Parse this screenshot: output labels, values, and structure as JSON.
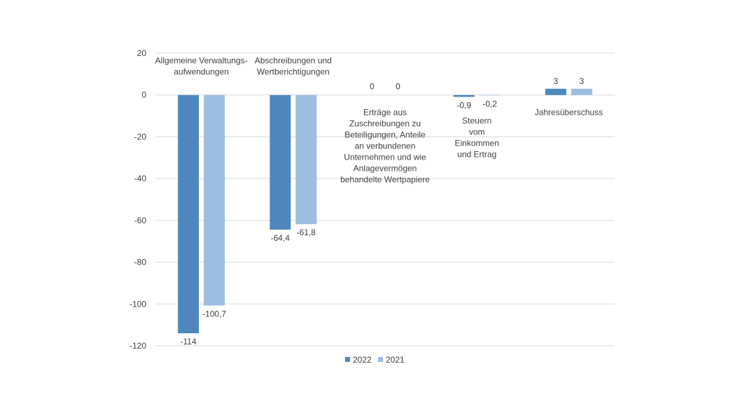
{
  "colors": {
    "series_2022": "#4f87bd",
    "series_2021": "#9dbde3",
    "gridline": "#d9d9d9",
    "text": "#404040"
  },
  "chart_data": {
    "type": "bar",
    "title": "",
    "xlabel": "",
    "ylabel": "",
    "ylim": [
      -120,
      20
    ],
    "yticks": [
      20,
      0,
      -20,
      -40,
      -60,
      -80,
      -100,
      -120
    ],
    "grid": true,
    "legend_position": "bottom",
    "categories": [
      [
        "Allgemeine Verwaltungs-",
        "aufwendungen"
      ],
      [
        "Abschreibungen und",
        "Wertberichtigungen"
      ],
      [
        "Erträge aus",
        "Zuschreibungen zu",
        "Beteiligungen, Anteile",
        "an verbundenen",
        "Unternehmen  und wie",
        "Anlagevermögen",
        "behandelte Wertpapiere"
      ],
      [
        "Steuern",
        "vom",
        "Einkommen",
        "und Ertrag"
      ],
      [
        "Jahresüberschuss"
      ]
    ],
    "series": [
      {
        "name": "2022",
        "values": [
          -114,
          -64.4,
          0,
          -0.9,
          3
        ],
        "labels": [
          "-114",
          "-64,4",
          "0",
          "-0,9",
          "3"
        ]
      },
      {
        "name": "2021",
        "values": [
          -100.7,
          -61.8,
          0,
          -0.2,
          3
        ],
        "labels": [
          "-100,7",
          "-61,8",
          "0",
          "-0,2",
          "3"
        ]
      }
    ]
  }
}
